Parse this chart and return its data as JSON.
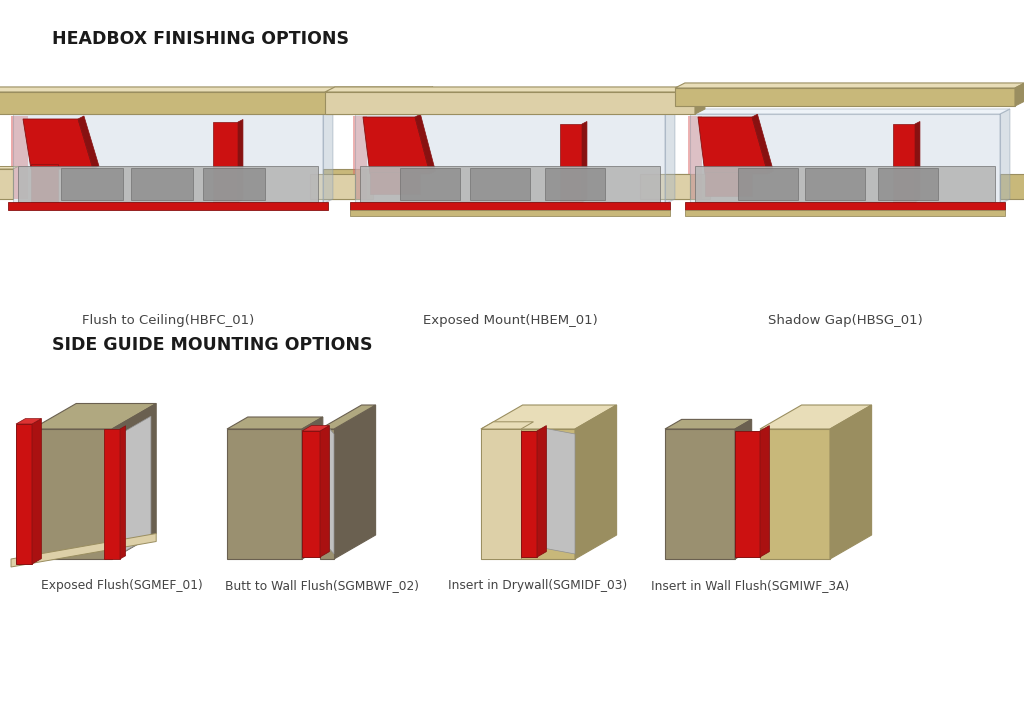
{
  "title1": "HEADBOX FINISHING OPTIONS",
  "title2": "SIDE GUIDE MOUNTING OPTIONS",
  "headbox_labels": [
    "Flush to Ceiling(HBFC_01)",
    "Exposed Mount(HBEM_01)",
    "Shadow Gap(HBSG_01)"
  ],
  "sideguide_labels": [
    "Exposed Flush(SGMEF_01)",
    "Butt to Wall Flush(SGMBWF_02)",
    "Insert in Drywall(SGMIDF_03)",
    "Insert in Wall Flush(SGMIWF_3A)"
  ],
  "bg_color": "#ffffff",
  "title_color": "#1a1a1a",
  "label_color": "#444444",
  "red": "#cc1111",
  "red_dark": "#881111",
  "red_mid": "#aa1111",
  "red_light": "#e04444",
  "red_transparent": "#dd6666",
  "tan": "#c8b87a",
  "tan_dark": "#9a8e60",
  "tan_mid": "#b0a070",
  "tan_light": "#ddd0a8",
  "tan_top": "#e8ddb8",
  "gray_panel": "#909090",
  "gray_panel_dark": "#686868",
  "gray_panel_light": "#b8b8b8",
  "gray_panel_sub": "#787878",
  "glass": "#c8d4e0",
  "glass_side": "#a8b8c8",
  "glass_top": "#d8e4f0",
  "glass_alpha": 0.45,
  "rail_red": "#cc0000",
  "khaki": "#9a9070",
  "khaki_light": "#b0a880",
  "khaki_dark": "#6a6050",
  "silver": "#c0c0c0",
  "silver_dark": "#909090"
}
